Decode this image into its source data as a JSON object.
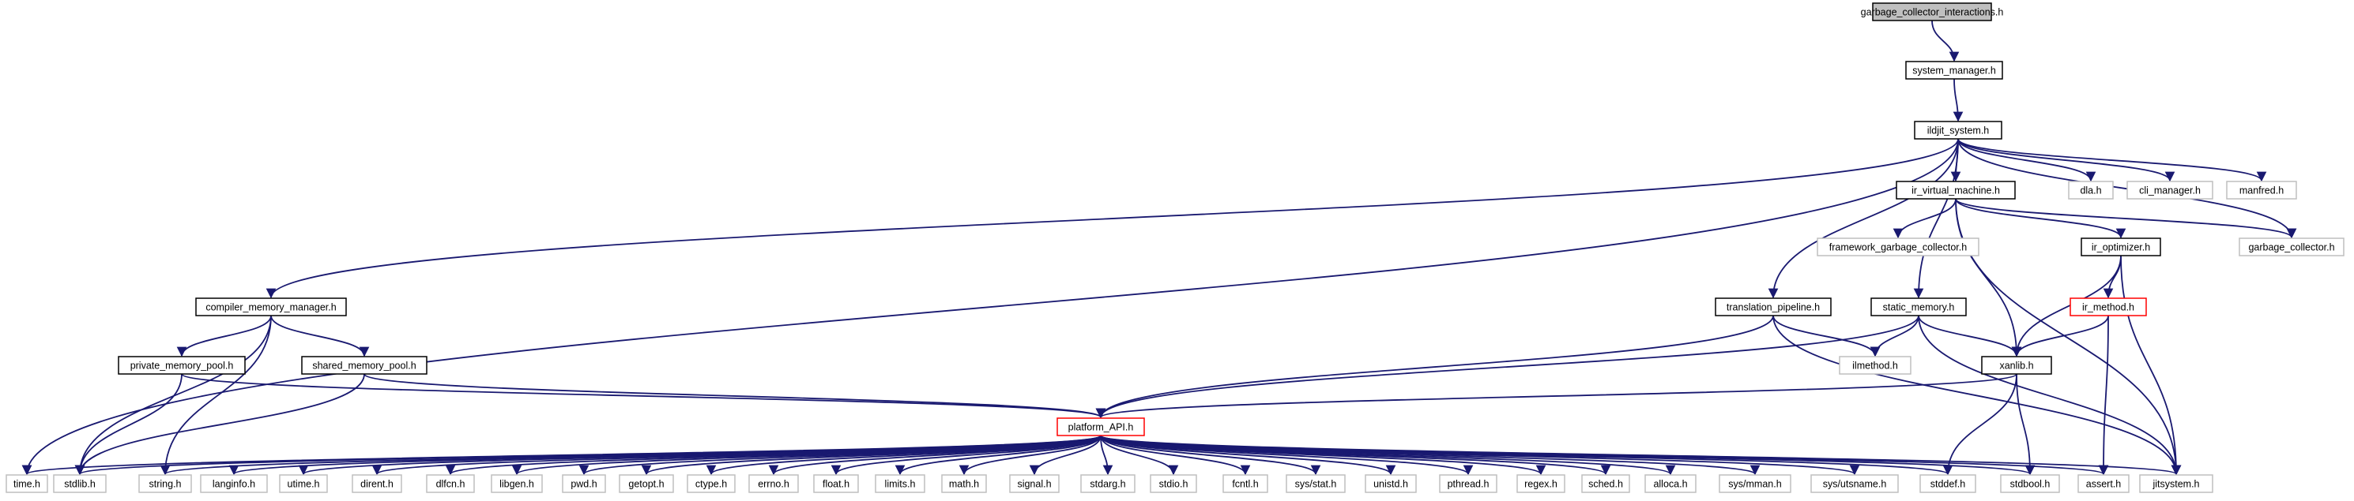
{
  "diagram": {
    "colors": {
      "edge": "#191970",
      "root_fill": "#bfbfbf",
      "documented_border": "#000000",
      "undocumented_border": "#bfbfbf",
      "truncated_border": "#ff0000"
    },
    "nodes": [
      {
        "id": "gci",
        "label": "garbage_collector_interactions.h",
        "style": "root"
      },
      {
        "id": "sm",
        "label": "system_manager.h",
        "style": "documented"
      },
      {
        "id": "ils",
        "label": "ildjit_system.h",
        "style": "documented"
      },
      {
        "id": "ivm",
        "label": "ir_virtual_machine.h",
        "style": "documented"
      },
      {
        "id": "dla",
        "label": "dla.h",
        "style": "undocumented"
      },
      {
        "id": "clim",
        "label": "cli_manager.h",
        "style": "undocumented"
      },
      {
        "id": "manf",
        "label": "manfred.h",
        "style": "undocumented"
      },
      {
        "id": "fgc",
        "label": "framework_garbage_collector.h",
        "style": "undocumented"
      },
      {
        "id": "iro",
        "label": "ir_optimizer.h",
        "style": "documented"
      },
      {
        "id": "gc",
        "label": "garbage_collector.h",
        "style": "undocumented"
      },
      {
        "id": "cmm",
        "label": "compiler_memory_manager.h",
        "style": "documented"
      },
      {
        "id": "tp",
        "label": "translation_pipeline.h",
        "style": "documented"
      },
      {
        "id": "stm",
        "label": "static_memory.h",
        "style": "documented"
      },
      {
        "id": "irm",
        "label": "ir_method.h",
        "style": "truncated"
      },
      {
        "id": "pmp",
        "label": "private_memory_pool.h",
        "style": "documented"
      },
      {
        "id": "smp",
        "label": "shared_memory_pool.h",
        "style": "documented"
      },
      {
        "id": "ilm",
        "label": "ilmethod.h",
        "style": "undocumented"
      },
      {
        "id": "xan",
        "label": "xanlib.h",
        "style": "documented"
      },
      {
        "id": "papi",
        "label": "platform_API.h",
        "style": "truncated"
      },
      {
        "id": "time",
        "label": "time.h",
        "style": "undocumented"
      },
      {
        "id": "stdlib",
        "label": "stdlib.h",
        "style": "undocumented"
      },
      {
        "id": "string",
        "label": "string.h",
        "style": "undocumented"
      },
      {
        "id": "langinfo",
        "label": "langinfo.h",
        "style": "undocumented"
      },
      {
        "id": "utime",
        "label": "utime.h",
        "style": "undocumented"
      },
      {
        "id": "dirent",
        "label": "dirent.h",
        "style": "undocumented"
      },
      {
        "id": "dlfcn",
        "label": "dlfcn.h",
        "style": "undocumented"
      },
      {
        "id": "libgen",
        "label": "libgen.h",
        "style": "undocumented"
      },
      {
        "id": "pwd",
        "label": "pwd.h",
        "style": "undocumented"
      },
      {
        "id": "getopt",
        "label": "getopt.h",
        "style": "undocumented"
      },
      {
        "id": "ctype",
        "label": "ctype.h",
        "style": "undocumented"
      },
      {
        "id": "errno",
        "label": "errno.h",
        "style": "undocumented"
      },
      {
        "id": "float",
        "label": "float.h",
        "style": "undocumented"
      },
      {
        "id": "limits",
        "label": "limits.h",
        "style": "undocumented"
      },
      {
        "id": "math",
        "label": "math.h",
        "style": "undocumented"
      },
      {
        "id": "signal",
        "label": "signal.h",
        "style": "undocumented"
      },
      {
        "id": "stdarg",
        "label": "stdarg.h",
        "style": "undocumented"
      },
      {
        "id": "stdio",
        "label": "stdio.h",
        "style": "undocumented"
      },
      {
        "id": "fcntl",
        "label": "fcntl.h",
        "style": "undocumented"
      },
      {
        "id": "sysstat",
        "label": "sys/stat.h",
        "style": "undocumented"
      },
      {
        "id": "unistd",
        "label": "unistd.h",
        "style": "undocumented"
      },
      {
        "id": "pthread",
        "label": "pthread.h",
        "style": "undocumented"
      },
      {
        "id": "regex",
        "label": "regex.h",
        "style": "undocumented"
      },
      {
        "id": "sched",
        "label": "sched.h",
        "style": "undocumented"
      },
      {
        "id": "alloca",
        "label": "alloca.h",
        "style": "undocumented"
      },
      {
        "id": "sysmman",
        "label": "sys/mman.h",
        "style": "undocumented"
      },
      {
        "id": "sysutsname",
        "label": "sys/utsname.h",
        "style": "undocumented"
      },
      {
        "id": "stddef",
        "label": "stddef.h",
        "style": "undocumented"
      },
      {
        "id": "stdbool",
        "label": "stdbool.h",
        "style": "undocumented"
      },
      {
        "id": "assert",
        "label": "assert.h",
        "style": "undocumented"
      },
      {
        "id": "jitsys",
        "label": "jitsystem.h",
        "style": "undocumented"
      }
    ],
    "edges": [
      [
        "gci",
        "sm"
      ],
      [
        "sm",
        "ils"
      ],
      [
        "ils",
        "time"
      ],
      [
        "ils",
        "cmm"
      ],
      [
        "ils",
        "tp"
      ],
      [
        "ils",
        "stm"
      ],
      [
        "ils",
        "ivm"
      ],
      [
        "ils",
        "dla"
      ],
      [
        "ils",
        "clim"
      ],
      [
        "ils",
        "manf"
      ],
      [
        "ils",
        "gc"
      ],
      [
        "ivm",
        "fgc"
      ],
      [
        "ivm",
        "iro"
      ],
      [
        "ivm",
        "gc"
      ],
      [
        "ivm",
        "xan"
      ],
      [
        "ivm",
        "jitsys"
      ],
      [
        "iro",
        "irm"
      ],
      [
        "iro",
        "xan"
      ],
      [
        "iro",
        "jitsys"
      ],
      [
        "irm",
        "xan"
      ],
      [
        "irm",
        "assert"
      ],
      [
        "cmm",
        "pmp"
      ],
      [
        "cmm",
        "smp"
      ],
      [
        "cmm",
        "stdlib"
      ],
      [
        "cmm",
        "string"
      ],
      [
        "pmp",
        "stdlib"
      ],
      [
        "pmp",
        "papi"
      ],
      [
        "smp",
        "stdlib"
      ],
      [
        "smp",
        "papi"
      ],
      [
        "tp",
        "ilm"
      ],
      [
        "tp",
        "papi"
      ],
      [
        "tp",
        "jitsys"
      ],
      [
        "stm",
        "ilm"
      ],
      [
        "stm",
        "xan"
      ],
      [
        "stm",
        "papi"
      ],
      [
        "stm",
        "jitsys"
      ],
      [
        "xan",
        "papi"
      ],
      [
        "xan",
        "stddef"
      ],
      [
        "xan",
        "stdbool"
      ],
      [
        "papi",
        "time"
      ],
      [
        "papi",
        "stdlib"
      ],
      [
        "papi",
        "string"
      ],
      [
        "papi",
        "langinfo"
      ],
      [
        "papi",
        "utime"
      ],
      [
        "papi",
        "dirent"
      ],
      [
        "papi",
        "dlfcn"
      ],
      [
        "papi",
        "libgen"
      ],
      [
        "papi",
        "pwd"
      ],
      [
        "papi",
        "getopt"
      ],
      [
        "papi",
        "ctype"
      ],
      [
        "papi",
        "errno"
      ],
      [
        "papi",
        "float"
      ],
      [
        "papi",
        "limits"
      ],
      [
        "papi",
        "math"
      ],
      [
        "papi",
        "signal"
      ],
      [
        "papi",
        "stdarg"
      ],
      [
        "papi",
        "stdio"
      ],
      [
        "papi",
        "fcntl"
      ],
      [
        "papi",
        "sysstat"
      ],
      [
        "papi",
        "unistd"
      ],
      [
        "papi",
        "pthread"
      ],
      [
        "papi",
        "regex"
      ],
      [
        "papi",
        "sched"
      ],
      [
        "papi",
        "alloca"
      ],
      [
        "papi",
        "sysmman"
      ],
      [
        "papi",
        "sysutsname"
      ],
      [
        "papi",
        "stddef"
      ],
      [
        "papi",
        "stdbool"
      ],
      [
        "papi",
        "assert"
      ],
      [
        "papi",
        "jitsys"
      ]
    ]
  }
}
